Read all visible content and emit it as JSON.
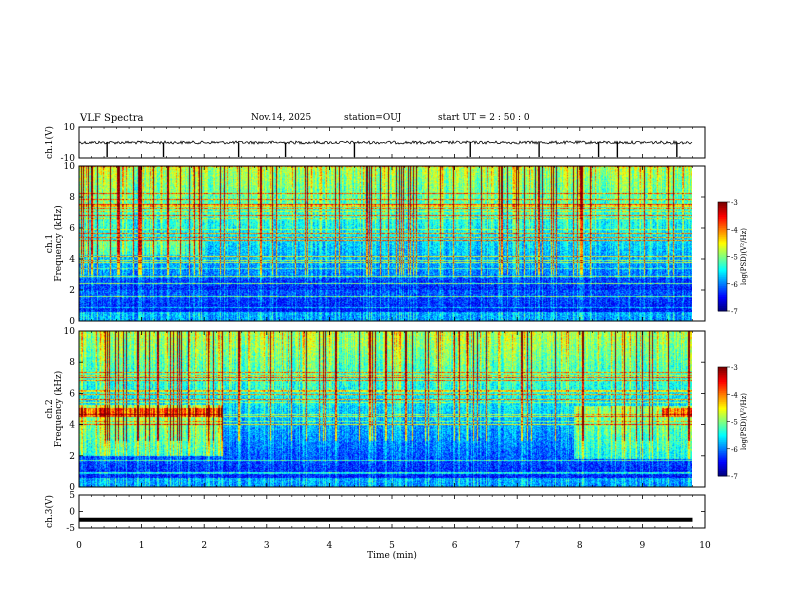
{
  "header": {
    "title": "VLF Spectra",
    "date": "Nov.14, 2025",
    "station": "station=OUJ",
    "start_ut": "start UT =  2 : 50 : 0"
  },
  "chart_data": [
    {
      "type": "line",
      "name": "ch1-waveform",
      "ylabel": "ch.1(V)",
      "ylim": [
        -10,
        10
      ],
      "y_tick_labels": [
        "10",
        "-10"
      ],
      "baseline_value": 0,
      "spike_times_min": [
        0.45,
        1.35,
        2.55,
        3.3,
        4.4,
        6.25,
        7.35,
        8.3,
        8.6,
        9.55
      ]
    },
    {
      "type": "heatmap",
      "name": "ch1-spectrogram",
      "ylabel": "ch.1\nFrequency (kHz)",
      "ylim": [
        0,
        10
      ],
      "y_tick_labels": [
        "0",
        "2",
        "4",
        "6",
        "8",
        "10"
      ],
      "colorbar": {
        "label": "log(PSD)(V²/Hz)",
        "range": [
          -7,
          -3
        ],
        "tick_labels": [
          "-3",
          "-4",
          "-5",
          "-6",
          "-7"
        ],
        "colormap": "jet"
      }
    },
    {
      "type": "heatmap",
      "name": "ch2-spectrogram",
      "ylabel": "ch.2\nFrequency (kHz)",
      "ylim": [
        0,
        10
      ],
      "y_tick_labels": [
        "0",
        "2",
        "4",
        "6",
        "8",
        "10"
      ],
      "colorbar": {
        "label": "log(PSD)(V²/Hz)",
        "range": [
          -7,
          -3
        ],
        "tick_labels": [
          "-3",
          "-4",
          "-5",
          "-6",
          "-7"
        ],
        "colormap": "jet"
      }
    },
    {
      "type": "line",
      "name": "ch3-waveform",
      "ylabel": "ch.3(V)",
      "ylim": [
        -5,
        5
      ],
      "y_tick_labels": [
        "5",
        "0",
        "-5"
      ],
      "constant_value": -2.5
    }
  ],
  "time_axis": {
    "xlabel": "Time (min)",
    "xlim": [
      0,
      10
    ],
    "data_end_min": 9.8,
    "tick_labels": [
      "0",
      "1",
      "2",
      "3",
      "4",
      "5",
      "6",
      "7",
      "8",
      "9",
      "10"
    ]
  },
  "colors": {
    "axis": "#000000",
    "background": "#ffffff",
    "trace": "#000000"
  }
}
